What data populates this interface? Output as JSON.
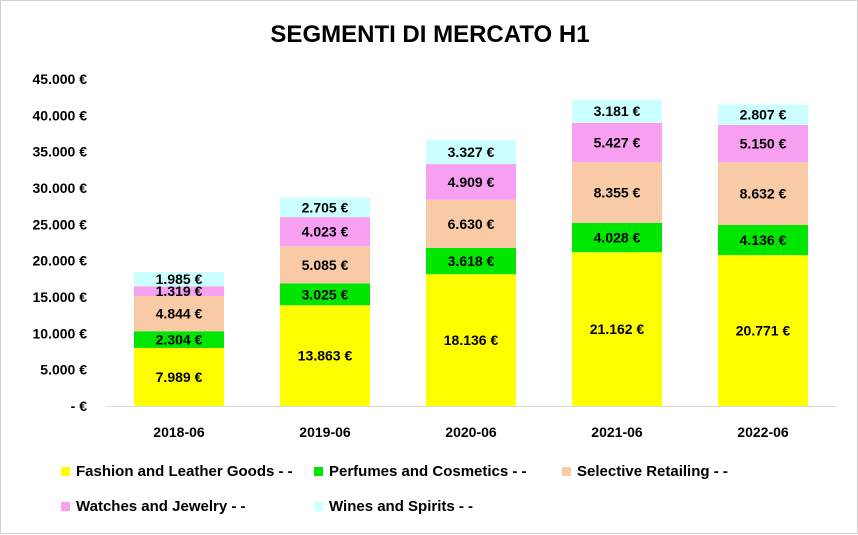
{
  "chart_data": {
    "type": "bar",
    "stacked": true,
    "title": "SEGMENTI DI MERCATO H1",
    "categories": [
      "2018-06",
      "2019-06",
      "2020-06",
      "2021-06",
      "2022-06"
    ],
    "series": [
      {
        "name": "Fashion and Leather Goods - -",
        "color": "#ffff00",
        "values": [
          7989,
          13863,
          18136,
          21162,
          20771
        ],
        "labels": [
          "7.989 €",
          "13.863 €",
          "18.136 €",
          "21.162 €",
          "20.771 €"
        ]
      },
      {
        "name": "Perfumes and Cosmetics - -",
        "color": "#00e600",
        "values": [
          2304,
          3025,
          3618,
          4028,
          4136
        ],
        "labels": [
          "2.304 €",
          "3.025 €",
          "3.618 €",
          "4.028 €",
          "4.136 €"
        ]
      },
      {
        "name": "Selective Retailing - -",
        "color": "#f8cba6",
        "values": [
          4844,
          5085,
          6630,
          8355,
          8632
        ],
        "labels": [
          "4.844 €",
          "5.085 €",
          "6.630 €",
          "8.355 €",
          "8.632 €"
        ]
      },
      {
        "name": "Watches and Jewelry - -",
        "color": "#f79ff0",
        "values": [
          1319,
          4023,
          4909,
          5427,
          5150
        ],
        "labels": [
          "1.319 €",
          "4.023 €",
          "4.909 €",
          "5.427 €",
          "5.150 €"
        ]
      },
      {
        "name": "Wines and Spirits - -",
        "color": "#ccffff",
        "values": [
          1985,
          2705,
          3327,
          3181,
          2807
        ],
        "labels": [
          "1.985 €",
          "2.705 €",
          "3.327 €",
          "3.181 €",
          "2.807 €"
        ]
      }
    ],
    "ylim": [
      0,
      45000
    ],
    "yticks": [
      0,
      5000,
      10000,
      15000,
      20000,
      25000,
      30000,
      35000,
      40000,
      45000
    ],
    "ytick_labels": [
      "-  €",
      "5.000 €",
      "10.000 €",
      "15.000 €",
      "20.000 €",
      "25.000 €",
      "30.000 €",
      "35.000 €",
      "40.000 €",
      "45.000 €"
    ],
    "xlabel": "",
    "ylabel": "",
    "grid": false,
    "legend_position": "bottom"
  }
}
